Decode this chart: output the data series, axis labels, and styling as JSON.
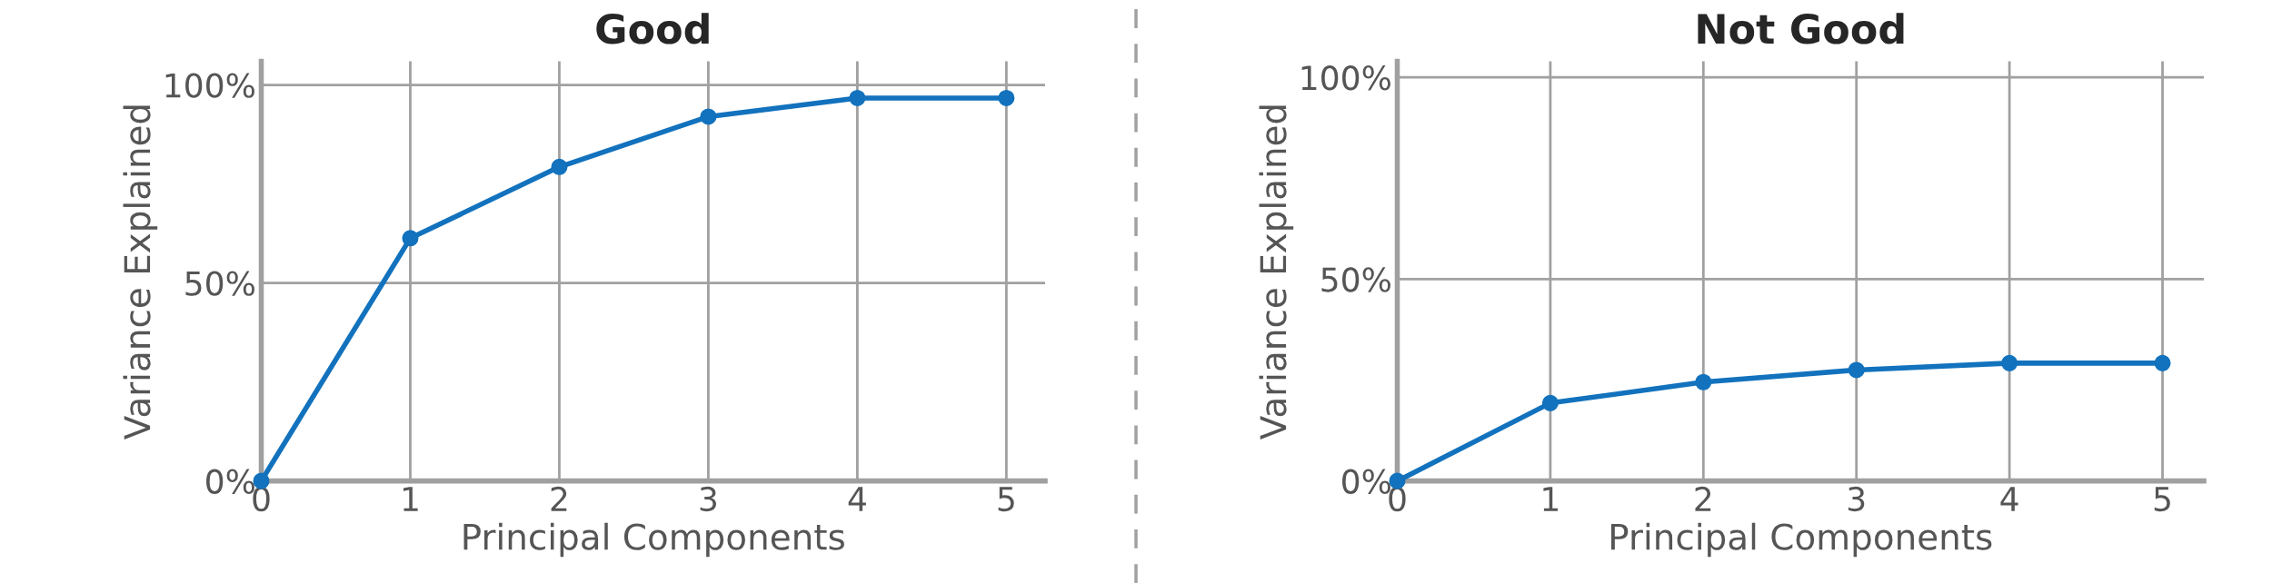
{
  "chart_data": [
    {
      "type": "line",
      "title": "Good",
      "xlabel": "Principal Components",
      "ylabel": "Variance Explained",
      "x": [
        0,
        1,
        2,
        3,
        4,
        5
      ],
      "series": [
        {
          "color": "#1272bd",
          "values": [
            0,
            61.3,
            79.3,
            92,
            96.7,
            96.7
          ]
        }
      ],
      "xlim": [
        0,
        5.26
      ],
      "ylim": [
        0,
        106
      ],
      "xticks": [
        0,
        1,
        2,
        3,
        4,
        5
      ],
      "yticks": [
        {
          "value": 0,
          "label": "0%"
        },
        {
          "value": 50,
          "label": "50%"
        },
        {
          "value": 100,
          "label": "100%"
        }
      ],
      "grid": true,
      "marker": "circle",
      "line_style": "solid"
    },
    {
      "type": "line",
      "title": "Not Good",
      "xlabel": "Principal Components",
      "ylabel": "Variance Explained",
      "x": [
        0,
        1,
        2,
        3,
        4,
        5
      ],
      "series": [
        {
          "color": "#1272bd",
          "values": [
            0,
            19.3,
            24.5,
            27.5,
            29.2,
            29.2
          ]
        }
      ],
      "xlim": [
        0,
        5.27
      ],
      "ylim": [
        0,
        104
      ],
      "xticks": [
        0,
        1,
        2,
        3,
        4,
        5
      ],
      "yticks": [
        {
          "value": 0,
          "label": "0%"
        },
        {
          "value": 50,
          "label": "50%"
        },
        {
          "value": 100,
          "label": "100%"
        }
      ],
      "grid": true,
      "marker": "circle",
      "line_style": "solid"
    }
  ]
}
